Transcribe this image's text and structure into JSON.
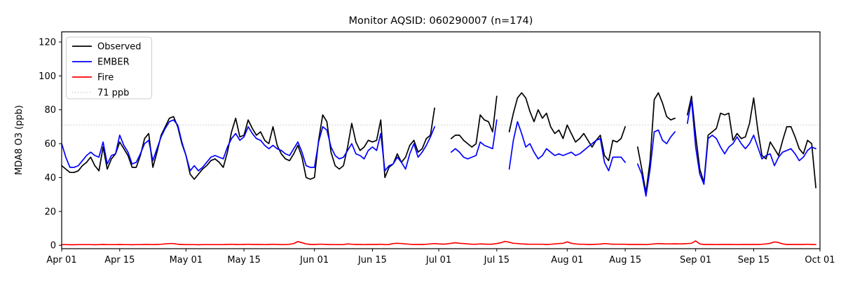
{
  "chart_data": {
    "type": "line",
    "title": "Monitor AQSID: 060290007 (n=174)",
    "ylabel": "MDA8 O3 (ppb)",
    "n_points": 174,
    "grid": false,
    "legend_position": "upper-left",
    "ylim": [
      -2,
      126
    ],
    "yticks": [
      0,
      20,
      40,
      60,
      80,
      100,
      120
    ],
    "total_days": 183,
    "xticks": [
      {
        "label": "Apr 01",
        "day": 0
      },
      {
        "label": "Apr 15",
        "day": 14
      },
      {
        "label": "May 01",
        "day": 30
      },
      {
        "label": "May 15",
        "day": 44
      },
      {
        "label": "Jun 01",
        "day": 61
      },
      {
        "label": "Jun 15",
        "day": 75
      },
      {
        "label": "Jul 01",
        "day": 91
      },
      {
        "label": "Jul 15",
        "day": 105
      },
      {
        "label": "Aug 01",
        "day": 122
      },
      {
        "label": "Aug 15",
        "day": 136
      },
      {
        "label": "Sep 01",
        "day": 153
      },
      {
        "label": "Sep 15",
        "day": 167
      },
      {
        "label": "Oct 01",
        "day": 183
      }
    ],
    "threshold": {
      "value": 71,
      "label": "71 ppb",
      "color": "#d3d3d3",
      "style": "dotted"
    },
    "legend_items": [
      {
        "label": "Observed",
        "color": "#000000",
        "style": "solid"
      },
      {
        "label": "EMBER",
        "color": "#0000ff",
        "style": "solid"
      },
      {
        "label": "Fire",
        "color": "#ff0000",
        "style": "solid"
      },
      {
        "label": "71 ppb",
        "color": "#d3d3d3",
        "style": "dotted"
      }
    ],
    "series": [
      {
        "name": "Observed",
        "color": "#000000",
        "values": [
          47,
          45,
          43,
          43,
          44,
          47,
          49,
          52,
          47,
          44,
          58,
          45,
          51,
          54,
          61,
          57,
          53,
          46,
          46,
          53,
          63,
          66,
          46,
          55,
          65,
          70,
          75,
          76,
          70,
          60,
          53,
          42,
          39,
          42,
          45,
          47,
          50,
          51,
          49,
          46,
          55,
          67,
          75,
          64,
          65,
          74,
          69,
          65,
          67,
          62,
          60,
          70,
          59,
          54,
          51,
          50,
          54,
          59,
          52,
          40,
          39,
          40,
          62,
          77,
          73,
          55,
          47,
          45,
          47,
          58,
          72,
          61,
          56,
          58,
          62,
          61,
          62,
          74,
          40,
          46,
          48,
          54,
          49,
          52,
          59,
          62,
          55,
          57,
          63,
          65,
          81,
          null,
          null,
          null,
          63,
          65,
          65,
          62,
          60,
          58,
          60,
          77,
          74,
          73,
          67,
          88,
          null,
          null,
          67,
          78,
          87,
          90,
          87,
          79,
          73,
          80,
          75,
          78,
          70,
          66,
          68,
          63,
          71,
          66,
          61,
          63,
          66,
          62,
          58,
          62,
          65,
          53,
          50,
          62,
          61,
          63,
          70,
          null,
          null,
          58,
          45,
          31,
          50,
          86,
          90,
          84,
          76,
          74,
          75,
          null,
          null,
          77,
          88,
          65,
          45,
          37,
          65,
          67,
          69,
          78,
          77,
          78,
          62,
          66,
          63,
          64,
          72,
          87,
          68,
          53,
          51,
          61,
          57,
          53,
          62,
          70,
          70,
          64,
          57,
          54,
          62,
          60,
          34
        ]
      },
      {
        "name": "EMBER",
        "color": "#0000ff",
        "values": [
          60,
          52,
          46,
          46,
          47,
          50,
          53,
          55,
          53,
          52,
          61,
          48,
          53,
          54,
          65,
          59,
          55,
          48,
          49,
          54,
          60,
          62,
          50,
          57,
          64,
          69,
          73,
          74,
          71,
          61,
          53,
          44,
          47,
          44,
          46,
          49,
          52,
          53,
          52,
          51,
          58,
          63,
          66,
          62,
          64,
          70,
          66,
          63,
          62,
          59,
          57,
          59,
          57,
          56,
          54,
          53,
          57,
          61,
          55,
          47,
          46,
          46,
          61,
          70,
          68,
          58,
          53,
          51,
          52,
          56,
          60,
          54,
          53,
          51,
          56,
          58,
          56,
          66,
          44,
          47,
          48,
          52,
          49,
          45,
          54,
          60,
          52,
          55,
          59,
          64,
          70,
          null,
          null,
          null,
          55,
          57,
          55,
          52,
          51,
          52,
          53,
          61,
          59,
          58,
          57,
          74,
          null,
          null,
          45,
          62,
          73,
          66,
          58,
          60,
          55,
          51,
          53,
          57,
          55,
          53,
          54,
          53,
          54,
          55,
          53,
          54,
          56,
          58,
          60,
          62,
          63,
          49,
          44,
          52,
          52,
          52,
          49,
          null,
          null,
          48,
          42,
          29,
          45,
          67,
          68,
          62,
          60,
          64,
          67,
          null,
          null,
          72,
          86,
          58,
          42,
          36,
          63,
          65,
          63,
          58,
          54,
          58,
          60,
          64,
          60,
          57,
          60,
          65,
          58,
          51,
          53,
          54,
          47,
          52,
          55,
          56,
          57,
          54,
          50,
          52,
          56,
          58,
          57
        ]
      },
      {
        "name": "Fire",
        "color": "#ff0000",
        "values": [
          0.4,
          0.4,
          0.3,
          0.3,
          0.4,
          0.4,
          0.4,
          0.4,
          0.3,
          0.4,
          0.5,
          0.4,
          0.4,
          0.4,
          0.5,
          0.4,
          0.4,
          0.3,
          0.4,
          0.4,
          0.5,
          0.5,
          0.4,
          0.5,
          0.6,
          0.8,
          1.0,
          1.0,
          0.6,
          0.5,
          0.4,
          0.4,
          0.4,
          0.3,
          0.4,
          0.4,
          0.4,
          0.4,
          0.4,
          0.4,
          0.5,
          0.6,
          0.5,
          0.4,
          0.5,
          0.6,
          0.5,
          0.5,
          0.5,
          0.4,
          0.5,
          0.6,
          0.5,
          0.4,
          0.4,
          0.6,
          1.0,
          2.2,
          1.5,
          0.8,
          0.5,
          0.5,
          0.6,
          0.6,
          0.5,
          0.4,
          0.4,
          0.4,
          0.4,
          0.8,
          0.6,
          0.5,
          0.5,
          0.4,
          0.5,
          0.5,
          0.5,
          0.6,
          0.4,
          0.5,
          1.0,
          1.2,
          1.0,
          0.8,
          0.6,
          0.5,
          0.5,
          0.5,
          0.6,
          0.8,
          1.0,
          0.8,
          0.7,
          0.8,
          1.2,
          1.5,
          1.2,
          1.0,
          0.8,
          0.6,
          0.6,
          0.8,
          0.7,
          0.6,
          0.7,
          1.0,
          1.5,
          2.3,
          1.8,
          1.2,
          1.0,
          0.8,
          0.7,
          0.6,
          0.6,
          0.6,
          0.6,
          0.5,
          0.6,
          0.8,
          1.0,
          1.2,
          2.0,
          1.2,
          0.8,
          0.6,
          0.6,
          0.5,
          0.5,
          0.6,
          0.7,
          1.0,
          0.8,
          0.6,
          0.6,
          0.6,
          0.6,
          0.5,
          0.5,
          0.5,
          0.5,
          0.4,
          0.6,
          0.8,
          1.0,
          0.9,
          0.8,
          0.8,
          0.9,
          0.8,
          0.9,
          1.0,
          1.2,
          2.6,
          0.8,
          0.5,
          0.5,
          0.5,
          0.4,
          0.5,
          0.5,
          0.5,
          0.5,
          0.4,
          0.5,
          0.5,
          0.5,
          0.5,
          0.5,
          0.6,
          0.8,
          1.2,
          2.0,
          1.6,
          0.8,
          0.5,
          0.5,
          0.5,
          0.5,
          0.5,
          0.6,
          0.5,
          0.4
        ]
      }
    ]
  }
}
